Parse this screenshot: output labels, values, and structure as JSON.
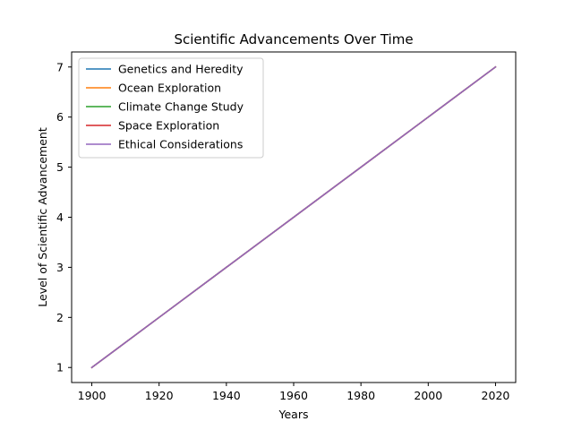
{
  "chart_data": {
    "type": "line",
    "title": "Scientific Advancements Over Time",
    "xlabel": "Years",
    "ylabel": "Level of Scientific Advancement",
    "x": [
      1900,
      1920,
      1940,
      1960,
      1980,
      2000,
      2020
    ],
    "xlim": [
      1894,
      2026
    ],
    "ylim": [
      0.7,
      7.3
    ],
    "xticks": [
      1900,
      1920,
      1940,
      1960,
      1980,
      2000,
      2020
    ],
    "yticks": [
      1,
      2,
      3,
      4,
      5,
      6,
      7
    ],
    "grid": false,
    "legend_position": "top-left",
    "series": [
      {
        "name": "Genetics and Heredity",
        "color": "#1f77b4",
        "values": [
          1,
          2,
          3,
          4,
          5,
          6,
          7
        ]
      },
      {
        "name": "Ocean Exploration",
        "color": "#ff7f0e",
        "values": [
          1,
          2,
          3,
          4,
          5,
          6,
          7
        ]
      },
      {
        "name": "Climate Change Study",
        "color": "#2ca02c",
        "values": [
          1,
          2,
          3,
          4,
          5,
          6,
          7
        ]
      },
      {
        "name": "Space Exploration",
        "color": "#d62728",
        "values": [
          1,
          2,
          3,
          4,
          5,
          6,
          7
        ]
      },
      {
        "name": "Ethical Considerations",
        "color": "#9467bd",
        "values": [
          1,
          2,
          3,
          4,
          5,
          6,
          7
        ]
      }
    ]
  }
}
